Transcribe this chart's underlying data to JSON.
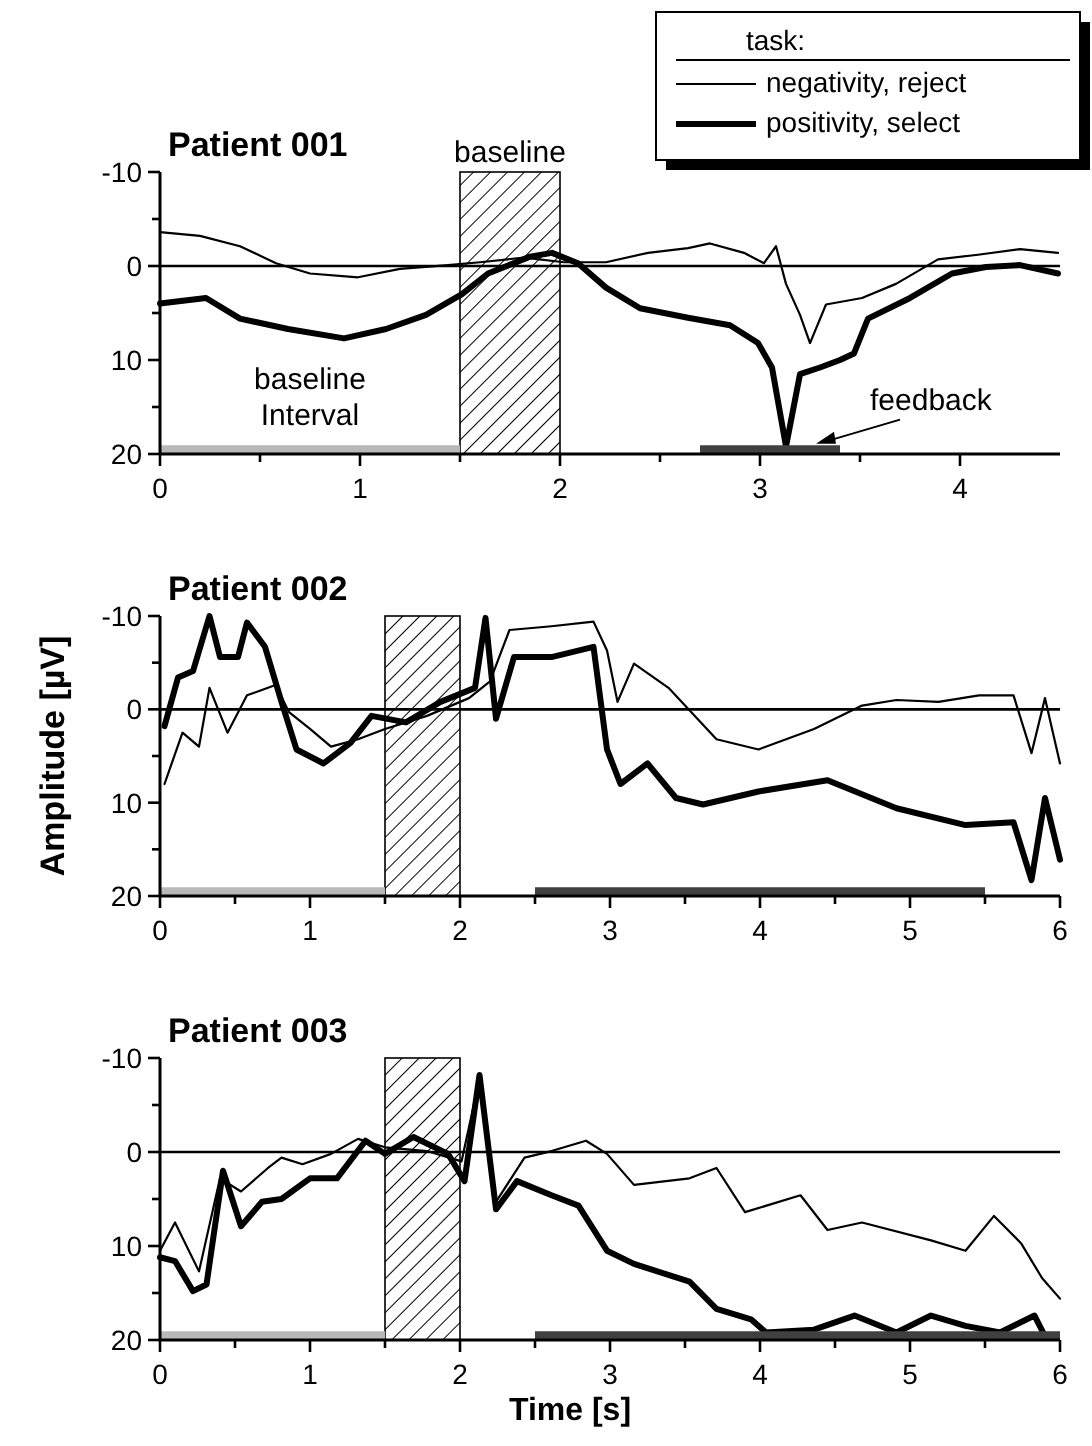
{
  "chart_data": [
    {
      "type": "line",
      "title": "Patient 001",
      "xlim": [
        0,
        4.5
      ],
      "xticks": [
        0,
        {
          "value": 0.5,
          "label": null
        },
        1,
        {
          "value": 1.5,
          "label": null
        },
        2,
        {
          "value": 2.5,
          "label": null
        },
        3,
        {
          "value": 3.5,
          "label": null
        },
        4
      ],
      "ylim": [
        20,
        -10
      ],
      "yticks": [
        -10,
        {
          "value": -5,
          "label": null
        },
        0,
        {
          "value": 5,
          "label": null
        },
        10,
        {
          "value": 15,
          "label": null
        },
        20
      ],
      "legend": "top right",
      "legend_title": "task:",
      "ref_lines": [
        {
          "axis": "y",
          "value": 0
        }
      ],
      "bands": [
        {
          "axis": "x",
          "from": 1.5,
          "to": 2,
          "label": "baseline"
        }
      ],
      "annotations": [
        {
          "text": "baseline Interval",
          "x": 0.75,
          "y": 19.5
        },
        {
          "text": "feedback",
          "x": 3.28,
          "y": 18.9
        }
      ],
      "series": [
        {
          "name": "negativity, reject",
          "color": "#000000",
          "x": [
            0,
            0.2,
            0.4,
            0.58,
            0.75,
            0.99,
            1.2,
            1.44,
            1.6,
            1.82,
            2.02,
            2.23,
            2.44,
            2.64,
            2.75,
            2.92,
            3.02,
            3.08,
            3.13,
            3.2,
            3.25,
            3.33,
            3.51,
            3.68,
            3.89,
            4.09,
            4.3,
            4.49
          ],
          "values": [
            -3.6,
            -3.2,
            -2.1,
            -0.3,
            0.8,
            1.2,
            0.3,
            -0.1,
            -0.4,
            -0.9,
            -0.4,
            -0.4,
            -1.4,
            -1.9,
            -2.4,
            -1.4,
            -0.3,
            -2.1,
            1.9,
            5.2,
            8.2,
            4.1,
            3.4,
            1.9,
            -0.7,
            -1.2,
            -1.8,
            -1.4
          ]
        },
        {
          "name": "positivity, select",
          "color": "#000000",
          "x": [
            0,
            0.23,
            0.4,
            0.64,
            0.92,
            1.13,
            1.33,
            1.51,
            1.64,
            1.85,
            1.96,
            2.09,
            2.23,
            2.4,
            2.64,
            2.85,
            2.99,
            3.06,
            3.13,
            3.2,
            3.3,
            3.4,
            3.47,
            3.54,
            3.75,
            3.96,
            4.13,
            4.3,
            4.49
          ],
          "values": [
            4.0,
            3.4,
            5.6,
            6.7,
            7.7,
            6.7,
            5.2,
            3.0,
            0.8,
            -1.0,
            -1.4,
            -0.3,
            2.3,
            4.5,
            5.5,
            6.3,
            8.2,
            10.8,
            19.2,
            11.5,
            10.8,
            10.0,
            9.3,
            5.6,
            3.4,
            0.8,
            0.1,
            -0.1,
            0.8
          ]
        },
        {
          "color": "#b8b8b8",
          "x": [
            0,
            1.5
          ],
          "values": [
            19.5,
            19.5
          ]
        },
        {
          "color": "#404040",
          "x": [
            2.7,
            3.4
          ],
          "values": [
            19.5,
            19.5
          ]
        }
      ]
    },
    {
      "type": "line",
      "title": "Patient 002",
      "ylabel": "Amplitude [µV]",
      "xlim": [
        0,
        6
      ],
      "xticks": [
        0,
        {
          "value": 0.5,
          "label": null
        },
        1,
        {
          "value": 1.5,
          "label": null
        },
        2,
        {
          "value": 2.5,
          "label": null
        },
        3,
        {
          "value": 3.5,
          "label": null
        },
        4,
        {
          "value": 4.5,
          "label": null
        },
        5,
        {
          "value": 5.5,
          "label": null
        },
        6
      ],
      "ylim": [
        20,
        -10
      ],
      "yticks": [
        -10,
        {
          "value": -5,
          "label": null
        },
        0,
        {
          "value": 5,
          "label": null
        },
        10,
        {
          "value": 15,
          "label": null
        },
        20
      ],
      "ref_lines": [
        {
          "axis": "y",
          "value": 0
        }
      ],
      "bands": [
        {
          "axis": "x",
          "from": 1.5,
          "to": 2
        }
      ],
      "series": [
        {
          "color": "#000000",
          "x": [
            0.03,
            0.15,
            0.26,
            0.33,
            0.45,
            0.58,
            0.77,
            0.86,
            1.0,
            1.14,
            1.32,
            1.5,
            1.78,
            2.06,
            2.2,
            2.33,
            2.61,
            2.89,
            2.98,
            3.05,
            3.16,
            3.39,
            3.71,
            3.99,
            4.36,
            4.68,
            4.91,
            5.19,
            5.46,
            5.69,
            5.81,
            5.9,
            6.0
          ],
          "values": [
            8.0,
            2.5,
            4.0,
            -2.3,
            2.5,
            -1.5,
            -2.6,
            0.3,
            2.1,
            4.0,
            3.2,
            2.1,
            0.7,
            -1.2,
            -3.0,
            -8.5,
            -8.9,
            -9.4,
            -6.3,
            -0.8,
            -4.9,
            -2.3,
            3.2,
            4.3,
            2.1,
            -0.4,
            -1.0,
            -0.8,
            -1.5,
            -1.5,
            4.7,
            -1.2,
            5.8
          ]
        },
        {
          "color": "#000000",
          "x": [
            0.03,
            0.12,
            0.22,
            0.33,
            0.4,
            0.52,
            0.58,
            0.7,
            0.81,
            0.91,
            1.09,
            1.27,
            1.41,
            1.64,
            1.87,
            2.1,
            2.17,
            2.24,
            2.36,
            2.61,
            2.89,
            2.98,
            3.07,
            3.25,
            3.44,
            3.62,
            3.99,
            4.45,
            4.91,
            5.37,
            5.69,
            5.81,
            5.9,
            6.0
          ],
          "values": [
            1.8,
            -3.4,
            -4.1,
            -10.0,
            -5.6,
            -5.6,
            -9.3,
            -6.7,
            -0.8,
            4.3,
            5.8,
            3.6,
            0.7,
            1.4,
            -0.8,
            -2.3,
            -9.8,
            1.0,
            -5.6,
            -5.6,
            -6.7,
            4.3,
            8.0,
            5.8,
            9.5,
            10.2,
            8.8,
            7.6,
            10.6,
            12.4,
            12.1,
            18.3,
            9.5,
            16.1
          ]
        },
        {
          "color": "#b8b8b8",
          "x": [
            0,
            1.5
          ],
          "values": [
            19.5,
            19.5
          ]
        },
        {
          "color": "#404040",
          "x": [
            2.5,
            5.5
          ],
          "values": [
            19.5,
            19.5
          ]
        }
      ]
    },
    {
      "type": "line",
      "title": "Patient 003",
      "xlabel": "Time [s]",
      "xlim": [
        0,
        6
      ],
      "xticks": [
        0,
        {
          "value": 0.5,
          "label": null
        },
        1,
        {
          "value": 1.5,
          "label": null
        },
        2,
        {
          "value": 2.5,
          "label": null
        },
        3,
        {
          "value": 3.5,
          "label": null
        },
        4,
        {
          "value": 4.5,
          "label": null
        },
        5,
        {
          "value": 5.5,
          "label": null
        },
        6
      ],
      "ylim": [
        20,
        -10
      ],
      "yticks": [
        -10,
        {
          "value": -5,
          "label": null
        },
        0,
        {
          "value": 5,
          "label": null
        },
        10,
        {
          "value": 15,
          "label": null
        },
        20
      ],
      "ref_lines": [
        {
          "axis": "y",
          "value": 0
        }
      ],
      "bands": [
        {
          "axis": "x",
          "from": 1.5,
          "to": 2
        }
      ],
      "series": [
        {
          "color": "#000000",
          "x": [
            0,
            0.1,
            0.26,
            0.4,
            0.54,
            0.72,
            0.81,
            0.95,
            1.14,
            1.32,
            1.5,
            1.78,
            2.01,
            2.13,
            2.24,
            2.43,
            2.61,
            2.84,
            2.98,
            3.16,
            3.53,
            3.71,
            3.9,
            4.27,
            4.45,
            4.68,
            5.14,
            5.37,
            5.56,
            5.74,
            5.88,
            6.0
          ],
          "values": [
            10.5,
            7.5,
            12.7,
            2.8,
            4.2,
            1.7,
            0.6,
            1.3,
            0.2,
            -1.4,
            -0.5,
            -0.1,
            1.0,
            -7.8,
            5.3,
            0.6,
            -0.1,
            -1.2,
            0.2,
            3.5,
            2.8,
            1.7,
            6.4,
            4.6,
            8.3,
            7.5,
            9.4,
            10.5,
            6.8,
            9.7,
            13.4,
            15.6
          ]
        },
        {
          "color": "#000000",
          "x": [
            0,
            0.1,
            0.22,
            0.31,
            0.42,
            0.54,
            0.68,
            0.81,
            1.0,
            1.18,
            1.37,
            1.5,
            1.69,
            1.92,
            2.03,
            2.13,
            2.24,
            2.38,
            2.61,
            2.79,
            2.98,
            3.16,
            3.53,
            3.71,
            3.94,
            4.04,
            4.36,
            4.63,
            4.91,
            5.14,
            5.37,
            5.6,
            5.83,
            5.9
          ],
          "values": [
            11.2,
            11.6,
            14.8,
            14.1,
            2.0,
            7.9,
            5.3,
            5.0,
            2.8,
            2.8,
            -1.2,
            0.2,
            -1.6,
            0.2,
            3.1,
            -8.2,
            6.1,
            3.1,
            4.6,
            5.7,
            10.5,
            11.9,
            13.8,
            16.7,
            17.8,
            19.2,
            18.9,
            17.4,
            19.2,
            17.4,
            18.5,
            19.2,
            17.4,
            19.6
          ]
        },
        {
          "color": "#b8b8b8",
          "x": [
            0,
            1.5
          ],
          "values": [
            19.5,
            19.5
          ]
        },
        {
          "color": "#404040",
          "x": [
            2.5,
            6
          ],
          "values": [
            19.5,
            19.5
          ]
        }
      ]
    }
  ]
}
